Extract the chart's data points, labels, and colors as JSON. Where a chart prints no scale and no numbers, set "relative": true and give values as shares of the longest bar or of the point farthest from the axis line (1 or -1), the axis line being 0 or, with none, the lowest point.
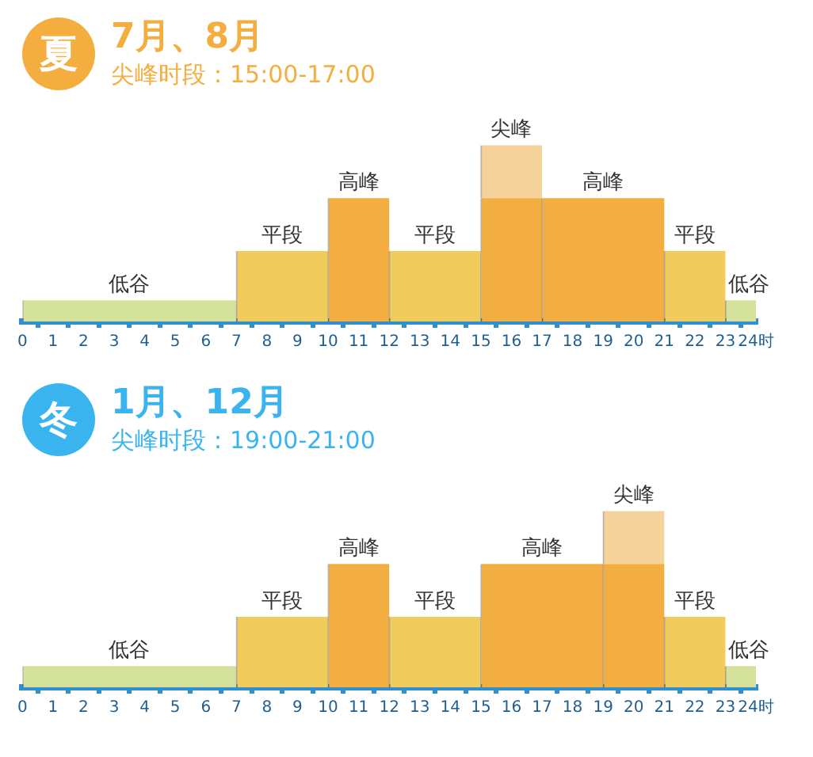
{
  "chart_data": [
    {
      "type": "bar",
      "title": "7月、8月",
      "subtitle": "尖峰时段：15:00-17:00",
      "stacked": true,
      "relative": true,
      "x": [
        3.5,
        8.5,
        11,
        13.5,
        16,
        19,
        22,
        23.5
      ],
      "xlim": [
        0,
        24
      ],
      "xticks": [
        0,
        1,
        2,
        3,
        4,
        5,
        6,
        7,
        8,
        9,
        10,
        11,
        12,
        13,
        14,
        15,
        16,
        17,
        18,
        19,
        20,
        21,
        22,
        23,
        {
          "value": 24,
          "label": "24时"
        }
      ],
      "series": [
        {
          "values": [
            0.12,
            0.4,
            0.7,
            0.4,
            0.7,
            0.7,
            0.4,
            0.12
          ],
          "colors": [
            "#d5e29c",
            "#f0cc5c",
            "#f2ae40",
            "#f0cc5c",
            "#f2ae40",
            "#f2ae40",
            "#f0cc5c",
            "#d5e29c"
          ]
        },
        {
          "values": [
            null,
            null,
            null,
            null,
            0.3,
            null,
            null,
            null
          ],
          "color": "#f5d29a"
        }
      ],
      "annotations": [
        "夏",
        {
          "text": "低谷",
          "x": 3.5,
          "y": 0.12
        },
        {
          "text": "平段",
          "x": 8.5,
          "y": 0.4
        },
        {
          "text": "高峰",
          "x": 11,
          "y": 0.7
        },
        {
          "text": "平段",
          "x": 13.5,
          "y": 0.4
        },
        {
          "text": "尖峰",
          "x": 16,
          "y": 1
        },
        {
          "text": "高峰",
          "x": 19,
          "y": 0.7
        },
        {
          "text": "平段",
          "x": 22,
          "y": 0.4
        },
        {
          "text": "低谷",
          "x": 23.5,
          "y": 0.12
        }
      ]
    },
    {
      "type": "bar",
      "title": "1月、12月",
      "subtitle": "尖峰时段：19:00-21:00",
      "stacked": true,
      "relative": true,
      "x": [
        3.5,
        8.5,
        11,
        13.5,
        17,
        20,
        22,
        23.5
      ],
      "xlim": [
        0,
        24
      ],
      "xticks": [
        0,
        1,
        2,
        3,
        4,
        5,
        6,
        7,
        8,
        9,
        10,
        11,
        12,
        13,
        14,
        15,
        16,
        17,
        18,
        19,
        20,
        21,
        22,
        23,
        {
          "value": 24,
          "label": "24时"
        }
      ],
      "series": [
        {
          "values": [
            0.12,
            0.4,
            0.7,
            0.4,
            0.7,
            0.7,
            0.4,
            0.12
          ],
          "colors": [
            "#d5e29c",
            "#f0cc5c",
            "#f2ae40",
            "#f0cc5c",
            "#f2ae40",
            "#f2ae40",
            "#f0cc5c",
            "#d5e29c"
          ]
        },
        {
          "values": [
            null,
            null,
            null,
            null,
            null,
            0.3,
            null,
            null
          ],
          "color": "#f5d29a"
        }
      ],
      "annotations": [
        "冬",
        {
          "text": "低谷",
          "x": 3.5,
          "y": 0.12
        },
        {
          "text": "平段",
          "x": 8.5,
          "y": 0.4
        },
        {
          "text": "高峰",
          "x": 11,
          "y": 0.7
        },
        {
          "text": "平段",
          "x": 13.5,
          "y": 0.4
        },
        {
          "text": "高峰",
          "x": 17,
          "y": 0.7
        },
        {
          "text": "尖峰",
          "x": 20,
          "y": 1
        },
        {
          "text": "平段",
          "x": 22,
          "y": 0.4
        },
        {
          "text": "低谷",
          "x": 23.5,
          "y": 0.12
        }
      ]
    }
  ]
}
